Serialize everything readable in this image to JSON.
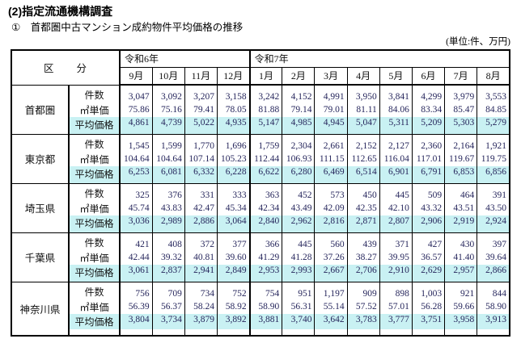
{
  "title": "(2)指定流通機構調査",
  "subtitle": "①　首都圏中古マンション成約物件平均価格の推移",
  "unit_label": "(単位:件、万円)",
  "colors": {
    "highlight": "#c9f1f3",
    "number_text": "#26265c",
    "border": "#000000"
  },
  "table": {
    "corner_header": "区　　分",
    "year_groups": [
      {
        "label": "令和6年",
        "months": [
          "9月",
          "10月",
          "11月",
          "12月"
        ]
      },
      {
        "label": "令和7年",
        "months": [
          "1月",
          "2月",
          "3月",
          "4月",
          "5月",
          "6月",
          "7月",
          "8月"
        ]
      }
    ],
    "metric_labels": [
      "件数",
      "㎡単価",
      "平均価格"
    ],
    "regions": [
      {
        "name": "首都圏",
        "rows": [
          [
            "3,047",
            "3,092",
            "3,207",
            "3,158",
            "3,242",
            "4,152",
            "4,991",
            "3,950",
            "3,841",
            "4,299",
            "3,979",
            "3,553"
          ],
          [
            "75.86",
            "75.16",
            "79.41",
            "78.05",
            "81.88",
            "79.14",
            "79.01",
            "81.11",
            "84.06",
            "83.34",
            "85.47",
            "84.85"
          ],
          [
            "4,861",
            "4,739",
            "5,022",
            "4,935",
            "5,147",
            "4,985",
            "4,945",
            "5,047",
            "5,311",
            "5,209",
            "5,303",
            "5,279"
          ]
        ]
      },
      {
        "name": "東京都",
        "rows": [
          [
            "1,545",
            "1,599",
            "1,770",
            "1,696",
            "1,759",
            "2,304",
            "2,661",
            "2,152",
            "2,127",
            "2,360",
            "2,164",
            "1,921"
          ],
          [
            "104.64",
            "104.64",
            "107.14",
            "105.23",
            "112.44",
            "106.93",
            "111.15",
            "112.65",
            "116.04",
            "117.01",
            "119.67",
            "119.75"
          ],
          [
            "6,253",
            "6,081",
            "6,332",
            "6,228",
            "6,622",
            "6,280",
            "6,469",
            "6,514",
            "6,901",
            "6,791",
            "6,853",
            "6,856"
          ]
        ]
      },
      {
        "name": "埼玉県",
        "rows": [
          [
            "325",
            "376",
            "331",
            "333",
            "363",
            "452",
            "573",
            "450",
            "445",
            "509",
            "464",
            "391"
          ],
          [
            "45.74",
            "43.83",
            "42.47",
            "45.34",
            "42.34",
            "43.49",
            "42.09",
            "42.35",
            "42.10",
            "43.32",
            "43.51",
            "43.50"
          ],
          [
            "3,036",
            "2,989",
            "2,886",
            "3,064",
            "2,840",
            "2,962",
            "2,816",
            "2,871",
            "2,807",
            "2,906",
            "2,919",
            "2,924"
          ]
        ]
      },
      {
        "name": "千葉県",
        "rows": [
          [
            "421",
            "408",
            "372",
            "377",
            "366",
            "445",
            "560",
            "439",
            "371",
            "427",
            "430",
            "397"
          ],
          [
            "42.44",
            "39.32",
            "40.81",
            "39.60",
            "41.29",
            "41.28",
            "37.26",
            "38.27",
            "39.95",
            "36.57",
            "41.40",
            "39.64"
          ],
          [
            "3,061",
            "2,837",
            "2,941",
            "2,849",
            "2,953",
            "2,993",
            "2,667",
            "2,706",
            "2,910",
            "2,629",
            "2,957",
            "2,866"
          ]
        ]
      },
      {
        "name": "神奈川県",
        "rows": [
          [
            "756",
            "709",
            "734",
            "752",
            "754",
            "951",
            "1,197",
            "909",
            "898",
            "1,003",
            "921",
            "844"
          ],
          [
            "56.39",
            "56.37",
            "58.24",
            "58.92",
            "58.90",
            "56.31",
            "55.14",
            "57.52",
            "57.01",
            "56.28",
            "59.66",
            "58.90"
          ],
          [
            "3,804",
            "3,734",
            "3,879",
            "3,892",
            "3,881",
            "3,740",
            "3,642",
            "3,783",
            "3,777",
            "3,751",
            "3,958",
            "3,913"
          ]
        ]
      }
    ]
  }
}
